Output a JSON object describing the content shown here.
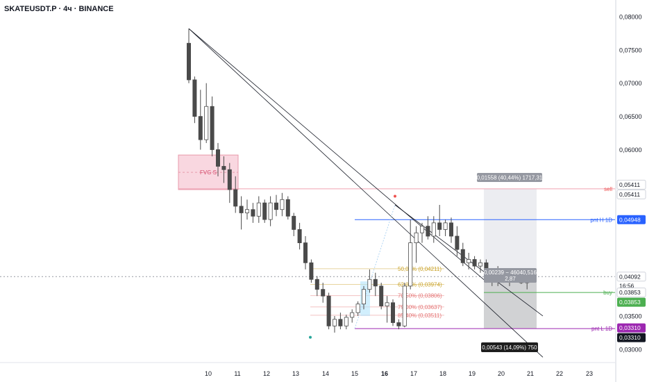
{
  "header": {
    "title": "SKATEUSDT.P · 4ч · BINANCE"
  },
  "colors": {
    "bull_body": "#ffffff",
    "bear_body": "#4a4a4a",
    "wick": "#4a4a4a",
    "fvg_fill": "#f7cad5",
    "fvg_stroke": "#e89aab",
    "fvg_text": "#d64b6c",
    "sell_line": "#f0a0b0",
    "pnt_h_line": "#2962ff",
    "pnt_l_line": "#9c27b0",
    "buy_line": "#4caf50",
    "fib_50": "#c9a227",
    "fib_62": "#c9a227",
    "fib_70": "#e57373",
    "fib_79": "#e57373",
    "fib_85": "#e57373"
  },
  "chart_data": {
    "type": "candlestick",
    "symbol": "SKATEUSDT.P",
    "interval": "4ч",
    "exchange": "BINANCE",
    "ylim": [
      0.028,
      0.0825
    ],
    "y_ticks": [
      "0,08000",
      "0,07500",
      "0,07000",
      "0,06500",
      "0,06000",
      "0,03500",
      "0,03000"
    ],
    "x_ticks": [
      "10",
      "11",
      "12",
      "13",
      "14",
      "15",
      "16",
      "17",
      "18",
      "19",
      "20",
      "21",
      "22",
      "23"
    ],
    "candles": [
      [
        0.076,
        0.0782,
        0.07,
        0.0705
      ],
      [
        0.0705,
        0.071,
        0.064,
        0.065
      ],
      [
        0.065,
        0.069,
        0.06,
        0.0615
      ],
      [
        0.0615,
        0.07,
        0.061,
        0.0665
      ],
      [
        0.0665,
        0.068,
        0.059,
        0.06
      ],
      [
        0.06,
        0.061,
        0.056,
        0.0575
      ],
      [
        0.0575,
        0.059,
        0.055,
        0.057
      ],
      [
        0.057,
        0.058,
        0.052,
        0.054
      ],
      [
        0.054,
        0.056,
        0.0505,
        0.0515
      ],
      [
        0.0515,
        0.053,
        0.048,
        0.0505
      ],
      [
        0.0505,
        0.0525,
        0.0495,
        0.051
      ],
      [
        0.051,
        0.052,
        0.049,
        0.05
      ],
      [
        0.05,
        0.053,
        0.049,
        0.052
      ],
      [
        0.052,
        0.0525,
        0.049,
        0.0495
      ],
      [
        0.0495,
        0.053,
        0.0485,
        0.052
      ],
      [
        0.052,
        0.0532,
        0.05,
        0.051
      ],
      [
        0.051,
        0.0535,
        0.05,
        0.0525
      ],
      [
        0.0525,
        0.053,
        0.0495,
        0.05
      ],
      [
        0.05,
        0.0505,
        0.047,
        0.048
      ],
      [
        0.048,
        0.049,
        0.045,
        0.046
      ],
      [
        0.046,
        0.047,
        0.042,
        0.043
      ],
      [
        0.043,
        0.0435,
        0.04,
        0.0405
      ],
      [
        0.0405,
        0.041,
        0.038,
        0.039
      ],
      [
        0.039,
        0.04,
        0.037,
        0.038
      ],
      [
        0.038,
        0.0385,
        0.033,
        0.0335
      ],
      [
        0.0335,
        0.035,
        0.0325,
        0.0345
      ],
      [
        0.0345,
        0.0355,
        0.033,
        0.0335
      ],
      [
        0.0335,
        0.0352,
        0.033,
        0.0348
      ],
      [
        0.0348,
        0.036,
        0.034,
        0.0355
      ],
      [
        0.0355,
        0.0372,
        0.035,
        0.0368
      ],
      [
        0.0368,
        0.0395,
        0.036,
        0.039
      ],
      [
        0.039,
        0.042,
        0.0385,
        0.0405
      ],
      [
        0.0405,
        0.0415,
        0.038,
        0.0395
      ],
      [
        0.0395,
        0.04,
        0.036,
        0.0365
      ],
      [
        0.0365,
        0.038,
        0.034,
        0.037
      ],
      [
        0.037,
        0.0375,
        0.0335,
        0.034
      ],
      [
        0.034,
        0.0345,
        0.033,
        0.0335
      ],
      [
        0.0335,
        0.04,
        0.0333,
        0.0395
      ],
      [
        0.0395,
        0.0495,
        0.039,
        0.046
      ],
      [
        0.046,
        0.0485,
        0.043,
        0.0475
      ],
      [
        0.0475,
        0.049,
        0.046,
        0.0485
      ],
      [
        0.0485,
        0.05,
        0.0465,
        0.047
      ],
      [
        0.047,
        0.05,
        0.046,
        0.049
      ],
      [
        0.049,
        0.0517,
        0.047,
        0.048
      ],
      [
        0.048,
        0.0495,
        0.047,
        0.049
      ],
      [
        0.049,
        0.0498,
        0.046,
        0.047
      ],
      [
        0.047,
        0.0485,
        0.044,
        0.045
      ],
      [
        0.045,
        0.046,
        0.0425,
        0.043
      ],
      [
        0.043,
        0.0445,
        0.042,
        0.0435
      ],
      [
        0.0435,
        0.044,
        0.042,
        0.0425
      ],
      [
        0.0425,
        0.0435,
        0.0415,
        0.043
      ],
      [
        0.043,
        0.0435,
        0.04,
        0.0405
      ],
      [
        0.0405,
        0.042,
        0.0395,
        0.041
      ],
      [
        0.041,
        0.0425,
        0.0395,
        0.0415
      ],
      [
        0.0415,
        0.042,
        0.04,
        0.0405
      ],
      [
        0.0405,
        0.0415,
        0.0395,
        0.041
      ],
      [
        0.041,
        0.042,
        0.0405,
        0.0412
      ],
      [
        0.0412,
        0.0418,
        0.0398,
        0.04
      ],
      [
        0.04,
        0.0412,
        0.039,
        0.0409
      ]
    ],
    "levels": {
      "sell": {
        "label": "sell",
        "price_labels": [
          "0,05411",
          "0,05411"
        ]
      },
      "pnt_h": {
        "label": "pnt H 1D",
        "price_label": "0,04948"
      },
      "current": {
        "price_label": "0,04092",
        "countdown": "16:56"
      },
      "buy": {
        "label": "buy",
        "price_labels": [
          "0,03853",
          "0,03853"
        ]
      },
      "pnt_l": {
        "label": "pnt L 1D",
        "price_labels": [
          "0,03310",
          "0,03310"
        ]
      }
    },
    "fvg_label": "FVG S",
    "fib_levels": [
      {
        "label": "50,00% (0,04211)"
      },
      {
        "label": "62,00% (0,03974)"
      },
      {
        "label": "70,50% (0,03806)"
      },
      {
        "label": "79,00% (0,03637)"
      },
      {
        "label": "85,40% (0,03511)"
      }
    ],
    "position_labels": {
      "target": "0,01558 (40,44%) 1717,31",
      "ratio_line1": "0,00239 − 46040,516",
      "ratio_line2": "2,87",
      "stop": "0,00543 (14,09%) 750"
    }
  }
}
